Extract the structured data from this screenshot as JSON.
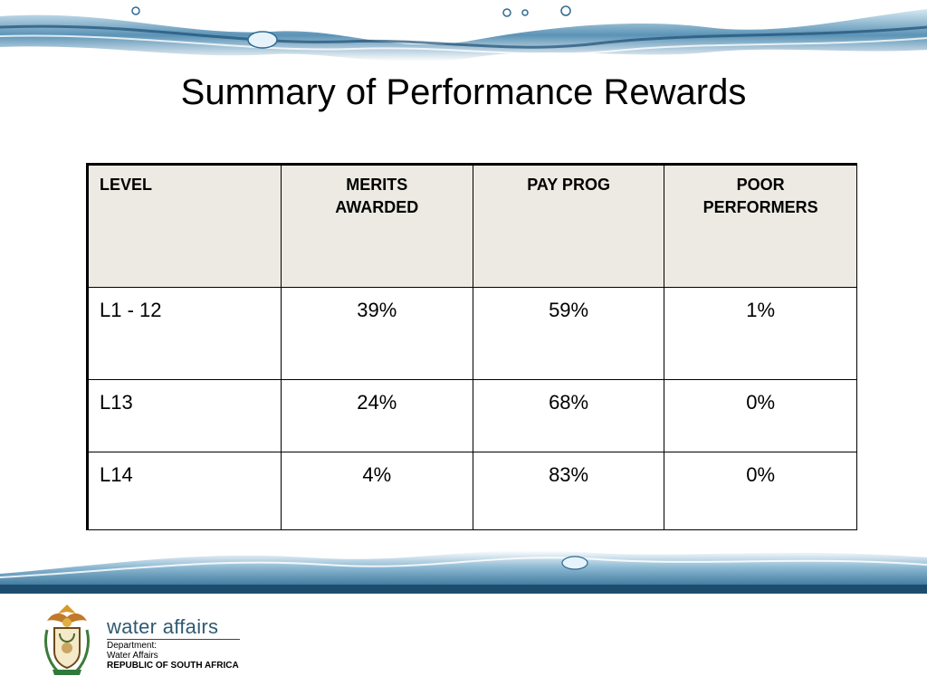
{
  "slide": {
    "title": "Summary of Performance Rewards"
  },
  "table": {
    "headers": [
      "LEVEL",
      "MERITS AWARDED",
      "PAY PROG",
      "POOR PERFORMERS"
    ],
    "rows": [
      [
        "L1 - 12",
        "39%",
        "59%",
        "1%"
      ],
      [
        "L13",
        "24%",
        "68%",
        "0%"
      ],
      [
        "L14",
        "4%",
        "83%",
        "0%"
      ]
    ]
  },
  "footer": {
    "brand": "water affairs",
    "dept_label": "Department:",
    "dept_name": "Water Affairs",
    "country": "REPUBLIC OF SOUTH AFRICA",
    "logo_icon": "coat-of-arms-icon"
  },
  "colors": {
    "header_bg": "#eceae3",
    "water_blue": "#1f6f9e",
    "brand_text": "#2f5a70"
  }
}
